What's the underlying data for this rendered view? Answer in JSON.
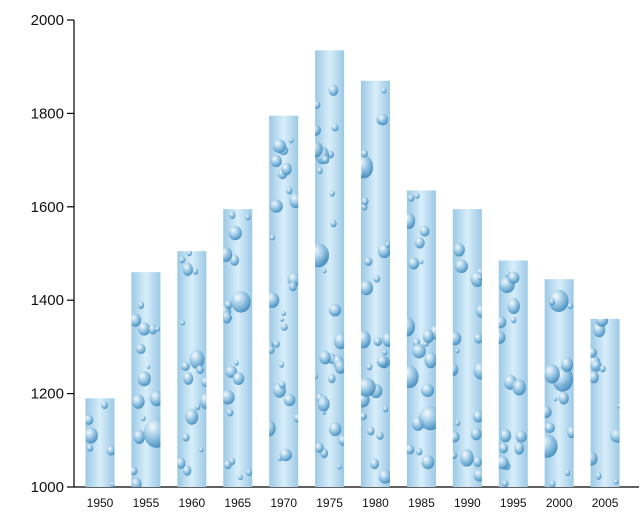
{
  "chart_data": {
    "type": "bar",
    "title": "",
    "xlabel": "",
    "ylabel": "",
    "categories": [
      "1950",
      "1955",
      "1960",
      "1965",
      "1970",
      "1975",
      "1980",
      "1985",
      "1990",
      "1995",
      "2000",
      "2005"
    ],
    "values": [
      1190,
      1460,
      1505,
      1595,
      1795,
      1935,
      1870,
      1635,
      1595,
      1485,
      1445,
      1360
    ],
    "ylim": [
      1000,
      2000
    ],
    "yticks": [
      1000,
      1200,
      1400,
      1600,
      1800,
      2000
    ],
    "grid": false,
    "legend": "none",
    "colors": {
      "bar_light": "#d8eefa",
      "bar_mid": "#9cc9e6",
      "drop_dark": "#2f7fb5",
      "drop_highlight": "#ffffff",
      "axis": "#000000",
      "text": "#111111"
    }
  }
}
